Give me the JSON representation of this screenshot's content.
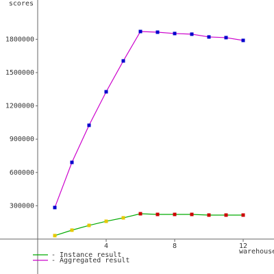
{
  "chart_data": {
    "type": "line",
    "y_label": "scores",
    "x_label": "warehouses",
    "x": [
      1,
      2,
      3,
      4,
      5,
      6,
      7,
      8,
      9,
      10,
      11,
      12
    ],
    "series": [
      {
        "name": "- Instance result",
        "color": "#00aa00",
        "marker_colors": [
          "#e6c800",
          "#e6c800",
          "#e6c800",
          "#e6c800",
          "#e6c800",
          "#cc0000",
          "#cc0000",
          "#cc0000",
          "#cc0000",
          "#cc0000",
          "#cc0000",
          "#cc0000"
        ],
        "values": [
          31000,
          80000,
          123000,
          160000,
          191000,
          228000,
          222000,
          222000,
          222000,
          216000,
          216000,
          216000
        ]
      },
      {
        "name": "- Aggregated result",
        "color": "#cc00cc",
        "marker_colors": [
          "#0000cc",
          "#0000cc",
          "#0000cc",
          "#0000cc",
          "#0000cc",
          "#0000cc",
          "#0000cc",
          "#0000cc",
          "#0000cc",
          "#0000cc",
          "#0000cc",
          "#0000cc"
        ],
        "values": [
          284000,
          691000,
          1025000,
          1327000,
          1605000,
          1870000,
          1864000,
          1852000,
          1846000,
          1821000,
          1815000,
          1790000
        ]
      }
    ],
    "xlim": [
      -2.2,
      13.8
    ],
    "ylim": [
      -315000,
      2154000
    ],
    "xticks": [
      4,
      8,
      12
    ],
    "yticks": [
      300000,
      600000,
      900000,
      1200000,
      1500000,
      1800000
    ],
    "axis_color": "#666666"
  }
}
